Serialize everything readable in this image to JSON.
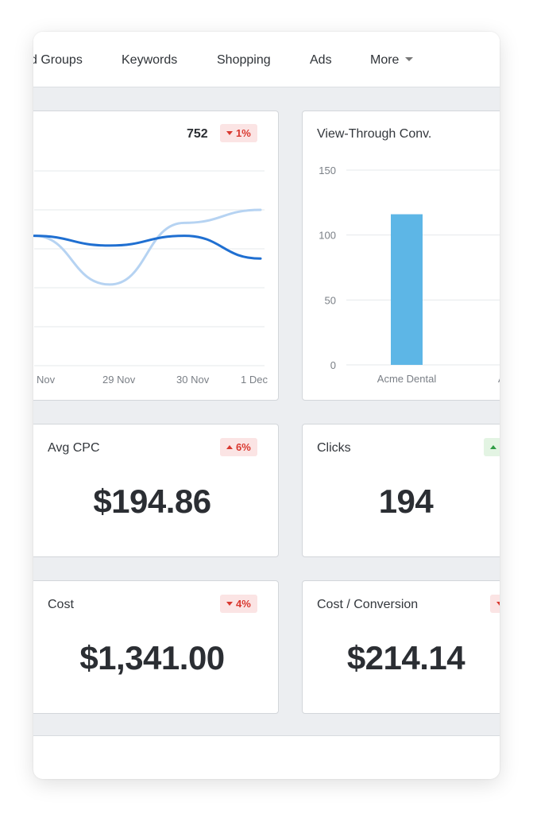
{
  "tabs": [
    {
      "label": "d Groups"
    },
    {
      "label": "Keywords"
    },
    {
      "label": "Shopping"
    },
    {
      "label": "Ads"
    },
    {
      "label": "More"
    }
  ],
  "line_card": {
    "value": "752",
    "change": {
      "text": "1%",
      "direction": "down"
    }
  },
  "bar_card": {
    "title": "View-Through Conv."
  },
  "metrics": [
    {
      "title": "Avg CPC",
      "value": "$194.86",
      "change": {
        "text": "6%",
        "direction": "up"
      }
    },
    {
      "title": "Clicks",
      "value": "194",
      "change": {
        "text": "",
        "direction": "up"
      }
    },
    {
      "title": "Cost",
      "value": "$1,341.00",
      "change": {
        "text": "4%",
        "direction": "down"
      }
    },
    {
      "title": "Cost / Conversion",
      "value": "$214.14",
      "change": {
        "text": "",
        "direction": "down"
      }
    }
  ],
  "colors": {
    "line_primary": "#1f6fd1",
    "line_secondary": "#b6d3f2",
    "bar": "#5db6e6",
    "negative": "#d9382f",
    "positive": "#2f9d45"
  },
  "chart_data": [
    {
      "type": "line",
      "categories": [
        "Nov",
        "29 Nov",
        "30 Nov",
        "1 Dec"
      ],
      "series": [
        {
          "values": [
            40,
            37,
            40,
            33
          ]
        },
        {
          "values": [
            40,
            25,
            44,
            48
          ]
        }
      ],
      "grid": true
    },
    {
      "type": "bar",
      "title": "View-Through Conv.",
      "categories": [
        "Acme Dental",
        "A"
      ],
      "values": [
        116,
        0
      ],
      "ylim": [
        0,
        150
      ],
      "yticks": [
        0,
        50,
        100,
        150
      ],
      "grid": true
    }
  ]
}
